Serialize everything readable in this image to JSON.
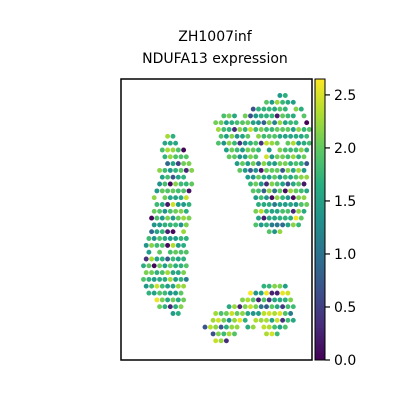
{
  "chart_data": {
    "type": "scatter",
    "title_line1": "ZH1007inf",
    "title_line2": "NDUFA13 expression",
    "xlabel": "",
    "ylabel": "",
    "grid": false,
    "legend": "none",
    "colorbar": {
      "label": "",
      "colormap": "viridis",
      "range": [
        0.0,
        2.65
      ],
      "ticks": [
        0.0,
        0.5,
        1.0,
        1.5,
        2.0,
        2.5
      ],
      "tick_labels": [
        "0.0",
        "0.5",
        "1.0",
        "1.5",
        "2.0",
        "2.5"
      ]
    },
    "tissue": {
      "left_lobe": [
        [
          0.23,
          0.82
        ],
        [
          0.3,
          0.78
        ],
        [
          0.35,
          0.74
        ],
        [
          0.38,
          0.7
        ],
        [
          0.35,
          0.4
        ],
        [
          0.34,
          0.22
        ],
        [
          0.3,
          0.16
        ],
        [
          0.22,
          0.17
        ],
        [
          0.12,
          0.25
        ],
        [
          0.1,
          0.29
        ]
      ],
      "right_lobe": [
        [
          0.47,
          0.84
        ],
        [
          0.5,
          0.78
        ],
        [
          0.6,
          0.69
        ],
        [
          0.68,
          0.61
        ],
        [
          0.7,
          0.55
        ],
        [
          0.7,
          0.47
        ],
        [
          0.8,
          0.45
        ],
        [
          0.93,
          0.47
        ],
        [
          0.97,
          0.5
        ],
        [
          0.98,
          0.62
        ],
        [
          0.99,
          0.86
        ],
        [
          0.93,
          0.91
        ],
        [
          0.89,
          0.93
        ],
        [
          0.85,
          0.95
        ],
        [
          0.8,
          0.94
        ],
        [
          0.75,
          0.92
        ],
        [
          0.6,
          0.87
        ],
        [
          0.52,
          0.87
        ]
      ],
      "lower_right": [
        [
          0.43,
          0.13
        ],
        [
          0.47,
          0.07
        ],
        [
          0.55,
          0.05
        ],
        [
          0.63,
          0.12
        ],
        [
          0.7,
          0.1
        ],
        [
          0.8,
          0.08
        ],
        [
          0.85,
          0.1
        ],
        [
          0.9,
          0.13
        ],
        [
          0.92,
          0.2
        ],
        [
          0.88,
          0.26
        ],
        [
          0.8,
          0.28
        ],
        [
          0.7,
          0.25
        ],
        [
          0.6,
          0.2
        ],
        [
          0.52,
          0.18
        ],
        [
          0.46,
          0.2
        ]
      ],
      "gap": [
        [
          0.45,
          0.15
        ],
        [
          0.47,
          0.8
        ],
        [
          0.5,
          0.82
        ],
        [
          0.52,
          0.55
        ],
        [
          0.52,
          0.3
        ],
        [
          0.51,
          0.2
        ]
      ]
    }
  }
}
